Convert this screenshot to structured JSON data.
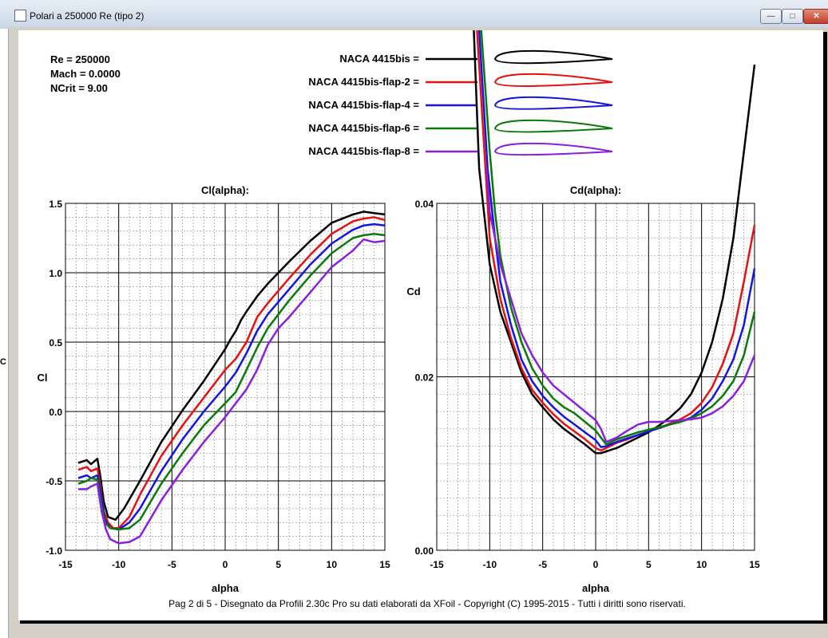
{
  "window": {
    "title": "Polari a 250000 Re (tipo 2)",
    "controls": {
      "minimize": "—",
      "maximize": "□",
      "close": "✕"
    },
    "side_glyph": "C"
  },
  "info": {
    "re": "Re = 250000",
    "mach": "Mach = 0.0000",
    "ncrit": "NCrit = 9.00"
  },
  "legend": [
    {
      "label": "NACA 4415bis =",
      "color": "#000000"
    },
    {
      "label": "NACA 4415bis-flap-2 =",
      "color": "#e81010"
    },
    {
      "label": "NACA 4415bis-flap-4 =",
      "color": "#1515e0"
    },
    {
      "label": "NACA 4415bis-flap-6 =",
      "color": "#0a7a0a"
    },
    {
      "label": "NACA 4415bis-flap-8 =",
      "color": "#8a1fe0"
    }
  ],
  "footer": "Pag 2 di 5  -   Disegnato da Profili 2.30c Pro su dati elaborati da XFoil - Copyright (C) 1995-2015 - Tutti i diritti sono riservati.",
  "chart_data": [
    {
      "type": "line",
      "title": "Cl(alpha):",
      "xlabel": "alpha",
      "ylabel": "Cl",
      "xlim": [
        -15,
        15
      ],
      "ylim": [
        -1.0,
        1.5
      ],
      "xticks": [
        "-15",
        "-10",
        "-5",
        "0",
        "5",
        "10",
        "15"
      ],
      "yticks": [
        "1.5",
        "1.0",
        "0.5",
        "0.0",
        "-0.5",
        "-1.0"
      ],
      "series": [
        {
          "name": "NACA 4415bis",
          "color": "#000000",
          "x": [
            -13.8,
            -13,
            -12.6,
            -12,
            -11.7,
            -11.4,
            -11,
            -10.3,
            -9.5,
            -8,
            -6,
            -4,
            -2,
            0,
            0.5,
            1,
            1.5,
            2,
            3,
            4,
            6,
            8,
            10,
            12,
            13,
            14,
            15
          ],
          "y": [
            -0.37,
            -0.35,
            -0.38,
            -0.34,
            -0.48,
            -0.65,
            -0.76,
            -0.78,
            -0.7,
            -0.5,
            -0.22,
            0.01,
            0.22,
            0.45,
            0.52,
            0.58,
            0.66,
            0.72,
            0.83,
            0.92,
            1.08,
            1.23,
            1.36,
            1.42,
            1.44,
            1.43,
            1.42
          ]
        },
        {
          "name": "NACA 4415bis-flap-2",
          "color": "#e81010",
          "x": [
            -13.8,
            -13,
            -12.6,
            -12,
            -11.7,
            -11.4,
            -11,
            -10.5,
            -10,
            -9,
            -8,
            -6,
            -4,
            -2,
            0,
            1,
            2,
            3,
            4,
            6,
            8,
            10,
            12,
            13,
            14,
            15
          ],
          "y": [
            -0.42,
            -0.4,
            -0.43,
            -0.41,
            -0.55,
            -0.72,
            -0.8,
            -0.84,
            -0.84,
            -0.76,
            -0.6,
            -0.32,
            -0.1,
            0.1,
            0.3,
            0.38,
            0.5,
            0.68,
            0.78,
            0.96,
            1.13,
            1.28,
            1.37,
            1.39,
            1.4,
            1.38
          ]
        },
        {
          "name": "NACA 4415bis-flap-4",
          "color": "#1515e0",
          "x": [
            -13.8,
            -13,
            -12.6,
            -12,
            -11.6,
            -11.3,
            -10.8,
            -10,
            -9,
            -8,
            -6,
            -4,
            -2,
            0,
            1,
            2,
            3,
            4,
            6,
            8,
            10,
            12,
            13,
            14,
            15
          ],
          "y": [
            -0.48,
            -0.46,
            -0.48,
            -0.46,
            -0.62,
            -0.78,
            -0.84,
            -0.85,
            -0.8,
            -0.7,
            -0.43,
            -0.2,
            0.0,
            0.18,
            0.28,
            0.42,
            0.58,
            0.7,
            0.88,
            1.06,
            1.21,
            1.31,
            1.34,
            1.35,
            1.34
          ]
        },
        {
          "name": "NACA 4415bis-flap-6",
          "color": "#0a7a0a",
          "x": [
            -13.8,
            -13,
            -12.6,
            -12,
            -11.6,
            -11.3,
            -10.8,
            -10,
            -9,
            -8,
            -6,
            -4,
            -2,
            0,
            1,
            2,
            3,
            4,
            5,
            6,
            8,
            10,
            12,
            13,
            14,
            15
          ],
          "y": [
            -0.52,
            -0.5,
            -0.48,
            -0.49,
            -0.68,
            -0.8,
            -0.84,
            -0.85,
            -0.84,
            -0.78,
            -0.52,
            -0.3,
            -0.1,
            0.06,
            0.14,
            0.3,
            0.46,
            0.6,
            0.7,
            0.8,
            0.98,
            1.14,
            1.25,
            1.27,
            1.28,
            1.27
          ]
        },
        {
          "name": "NACA 4415bis-flap-8",
          "color": "#8a1fe0",
          "x": [
            -13.8,
            -13,
            -12.6,
            -12,
            -11.6,
            -11.2,
            -10.8,
            -10,
            -9,
            -8,
            -6,
            -4,
            -2,
            0,
            1,
            2,
            3,
            4,
            5,
            6,
            8,
            10,
            12,
            13,
            14,
            15
          ],
          "y": [
            -0.56,
            -0.56,
            -0.54,
            -0.52,
            -0.72,
            -0.85,
            -0.92,
            -0.95,
            -0.94,
            -0.9,
            -0.64,
            -0.42,
            -0.22,
            -0.04,
            0.06,
            0.16,
            0.3,
            0.48,
            0.6,
            0.68,
            0.86,
            1.04,
            1.16,
            1.24,
            1.22,
            1.23
          ]
        }
      ]
    },
    {
      "type": "line",
      "title": "Cd(alpha):",
      "xlabel": "alpha",
      "ylabel": "Cd",
      "xlim": [
        -15,
        15
      ],
      "ylim": [
        0.0,
        0.04
      ],
      "xticks": [
        "-15",
        "-10",
        "-5",
        "0",
        "5",
        "10",
        "15"
      ],
      "yticks": [
        "0.04",
        "0.02",
        "0.00"
      ],
      "series": [
        {
          "name": "NACA 4415bis",
          "color": "#000000",
          "x": [
            -11.5,
            -11,
            -10,
            -9,
            -8,
            -7,
            -6,
            -5,
            -4,
            -3,
            -2,
            -1,
            0,
            0.5,
            1,
            2,
            3,
            4,
            5,
            6,
            7,
            8,
            9,
            10,
            11,
            12,
            13,
            14,
            15
          ],
          "y": [
            0.06,
            0.044,
            0.033,
            0.0275,
            0.024,
            0.0205,
            0.018,
            0.0165,
            0.0151,
            0.014,
            0.0131,
            0.0122,
            0.0112,
            0.0112,
            0.0114,
            0.0118,
            0.0124,
            0.013,
            0.0136,
            0.0144,
            0.0153,
            0.0164,
            0.018,
            0.0205,
            0.024,
            0.029,
            0.036,
            0.046,
            0.056
          ]
        },
        {
          "name": "NACA 4415bis-flap-2",
          "color": "#e81010",
          "x": [
            -11.2,
            -10.5,
            -10,
            -9,
            -8,
            -7,
            -6,
            -5,
            -4,
            -3,
            -2,
            -1,
            0,
            0.5,
            1,
            2,
            3,
            4,
            5,
            6,
            7,
            8,
            9,
            10,
            11,
            12,
            13,
            14,
            15
          ],
          "y": [
            0.06,
            0.046,
            0.036,
            0.029,
            0.0245,
            0.021,
            0.0185,
            0.017,
            0.0157,
            0.0146,
            0.0137,
            0.0128,
            0.0118,
            0.0115,
            0.0118,
            0.0124,
            0.0128,
            0.0133,
            0.0137,
            0.0141,
            0.0146,
            0.0151,
            0.0158,
            0.017,
            0.0188,
            0.0215,
            0.025,
            0.031,
            0.0375
          ]
        },
        {
          "name": "NACA 4415bis-flap-4",
          "color": "#1515e0",
          "x": [
            -11,
            -10.2,
            -9.5,
            -9,
            -8,
            -7,
            -6,
            -5,
            -4,
            -3,
            -2,
            -1,
            0,
            0.5,
            1,
            2,
            3,
            4,
            5,
            6,
            7,
            8,
            9,
            10,
            11,
            12,
            13,
            14,
            15
          ],
          "y": [
            0.06,
            0.044,
            0.036,
            0.031,
            0.026,
            0.022,
            0.0195,
            0.0178,
            0.0165,
            0.0154,
            0.0145,
            0.0136,
            0.0127,
            0.0119,
            0.012,
            0.0125,
            0.0129,
            0.0133,
            0.0137,
            0.0141,
            0.0145,
            0.0148,
            0.0153,
            0.0162,
            0.0175,
            0.0195,
            0.022,
            0.026,
            0.0325
          ]
        },
        {
          "name": "NACA 4415bis-flap-6",
          "color": "#0a7a0a",
          "x": [
            -10.8,
            -10,
            -9.5,
            -9,
            -8,
            -7,
            -6,
            -5,
            -4,
            -3,
            -2,
            -1,
            0,
            0.5,
            1,
            2,
            3,
            4,
            5,
            6,
            7,
            8,
            9,
            10,
            11,
            12,
            13,
            14,
            15
          ],
          "y": [
            0.06,
            0.046,
            0.039,
            0.034,
            0.028,
            0.024,
            0.021,
            0.019,
            0.0175,
            0.0165,
            0.0158,
            0.0148,
            0.0138,
            0.013,
            0.0122,
            0.0128,
            0.0132,
            0.0136,
            0.0139,
            0.0142,
            0.0145,
            0.0148,
            0.0152,
            0.0158,
            0.0166,
            0.0178,
            0.0195,
            0.0225,
            0.0275
          ]
        },
        {
          "name": "NACA 4415bis-flap-8",
          "color": "#8a1fe0",
          "x": [
            -10.3,
            -10,
            -9.5,
            -9,
            -8,
            -7,
            -6,
            -5,
            -4,
            -3,
            -2,
            -1,
            0,
            0.5,
            1,
            2,
            3,
            4,
            5,
            6,
            7,
            8,
            9,
            10,
            11,
            12,
            13,
            14,
            15
          ],
          "y": [
            0.044,
            0.039,
            0.036,
            0.033,
            0.029,
            0.025,
            0.0225,
            0.0205,
            0.019,
            0.018,
            0.017,
            0.016,
            0.015,
            0.014,
            0.0125,
            0.013,
            0.0138,
            0.0145,
            0.0148,
            0.0148,
            0.0149,
            0.015,
            0.0151,
            0.0153,
            0.0158,
            0.0166,
            0.0178,
            0.0195,
            0.0225
          ]
        }
      ]
    }
  ]
}
